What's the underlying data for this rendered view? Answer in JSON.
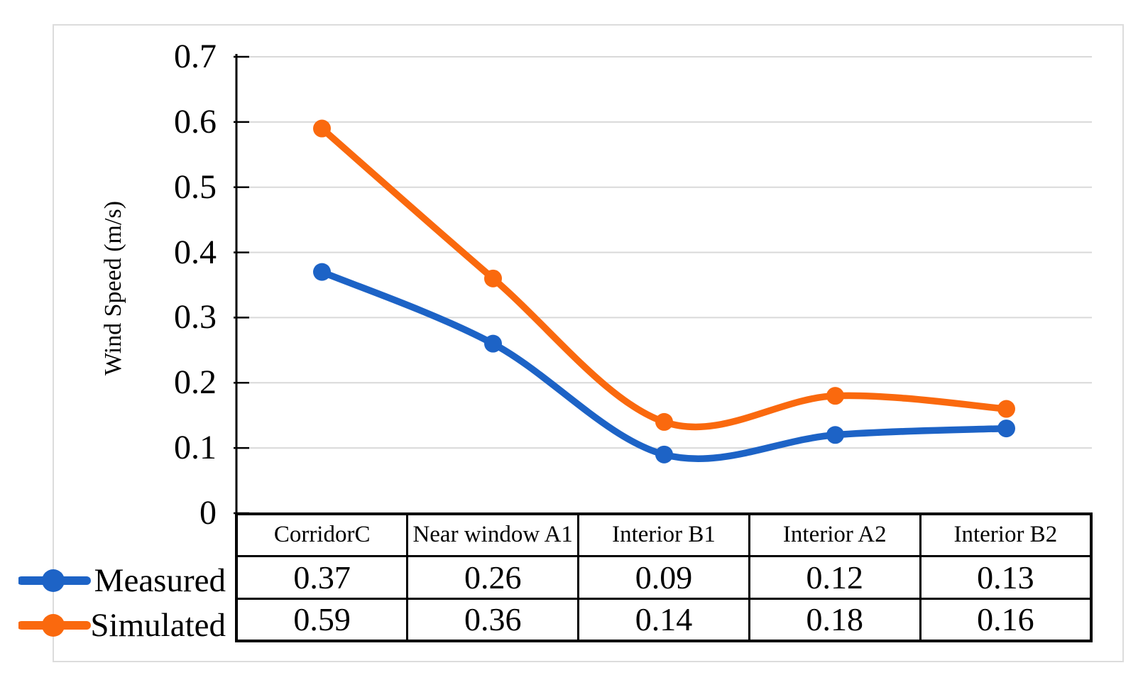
{
  "chart_data": {
    "type": "line",
    "title": "",
    "xlabel": "",
    "ylabel": "Wind Speed (m/s)",
    "categories": [
      "CorridorC",
      "Near window A1",
      "Interior B1",
      "Interior A2",
      "Interior B2"
    ],
    "series": [
      {
        "name": "Measured",
        "values": [
          0.37,
          0.26,
          0.09,
          0.12,
          0.13
        ],
        "color": "#1d63c6"
      },
      {
        "name": "Simulated",
        "values": [
          0.59,
          0.36,
          0.14,
          0.18,
          0.16
        ],
        "color": "#fa690e"
      }
    ],
    "ylim": [
      0,
      0.7
    ],
    "ytick_labels": [
      "0",
      "0.1",
      "0.2",
      "0.3",
      "0.4",
      "0.5",
      "0.6",
      "0.7"
    ],
    "grid": true,
    "smooth_lines": true,
    "markers": "circle",
    "legend_position": "bottom-left",
    "data_table_shown": true,
    "colors": {
      "gridline": "#d9d9d9",
      "axis": "#000000",
      "table_border": "#000000",
      "figure_border": "#dcdcdc",
      "background": "#ffffff",
      "text": "#000000"
    }
  }
}
